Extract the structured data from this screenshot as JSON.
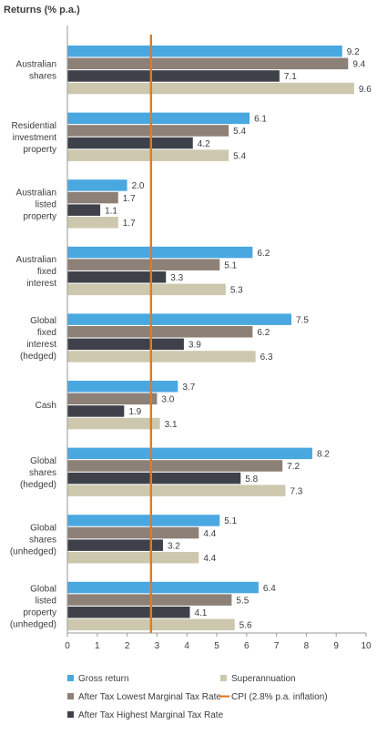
{
  "chart_data": {
    "type": "bar",
    "orientation": "horizontal",
    "title": "Returns (% p.a.)",
    "categories": [
      [
        "Australian",
        "shares"
      ],
      [
        "Residential",
        "investment",
        "property"
      ],
      [
        "Australian",
        "listed",
        "property"
      ],
      [
        "Australian",
        "fixed",
        "interest"
      ],
      [
        "Global",
        "fixed",
        "interest",
        "(hedged)"
      ],
      [
        "Cash"
      ],
      [
        "Global",
        "shares",
        "(hedged)"
      ],
      [
        "Global",
        "shares",
        "(unhedged)"
      ],
      [
        "Global",
        "listed",
        "property",
        "(unhedged)"
      ]
    ],
    "series": [
      {
        "name": "Gross return",
        "color": "#4aa8e0",
        "values": [
          9.2,
          6.1,
          2.0,
          6.2,
          7.5,
          3.7,
          8.2,
          5.1,
          6.4
        ]
      },
      {
        "name": "After Tax Lowest Marginal Tax Rate",
        "color": "#8c8077",
        "values": [
          9.4,
          5.4,
          1.7,
          5.1,
          6.2,
          3.0,
          7.2,
          4.4,
          5.5
        ]
      },
      {
        "name": "After Tax Highest Marginal Tax Rate",
        "color": "#3e4149",
        "values": [
          7.1,
          4.2,
          1.1,
          3.3,
          3.9,
          1.9,
          5.8,
          3.2,
          4.1
        ]
      },
      {
        "name": "Superannuation",
        "color": "#cdc8ad",
        "values": [
          9.6,
          5.4,
          1.7,
          5.3,
          6.3,
          3.1,
          7.3,
          4.4,
          5.6
        ]
      }
    ],
    "reference_line": {
      "name": "CPI (2.8% p.a. inflation)",
      "value": 2.8,
      "color": "#e07a23"
    },
    "xlim": [
      0,
      10
    ],
    "xticks": [
      "0",
      "1",
      "2",
      "3",
      "4",
      "5",
      "6",
      "7",
      "8",
      "9",
      "10"
    ],
    "grid": false,
    "legend_position": "bottom",
    "legend_order": [
      [
        "Gross return",
        "Superannuation"
      ],
      [
        "After Tax Lowest Marginal Tax Rate",
        "CPI (2.8% p.a. inflation)"
      ],
      [
        "After Tax Highest Marginal Tax Rate"
      ]
    ]
  }
}
